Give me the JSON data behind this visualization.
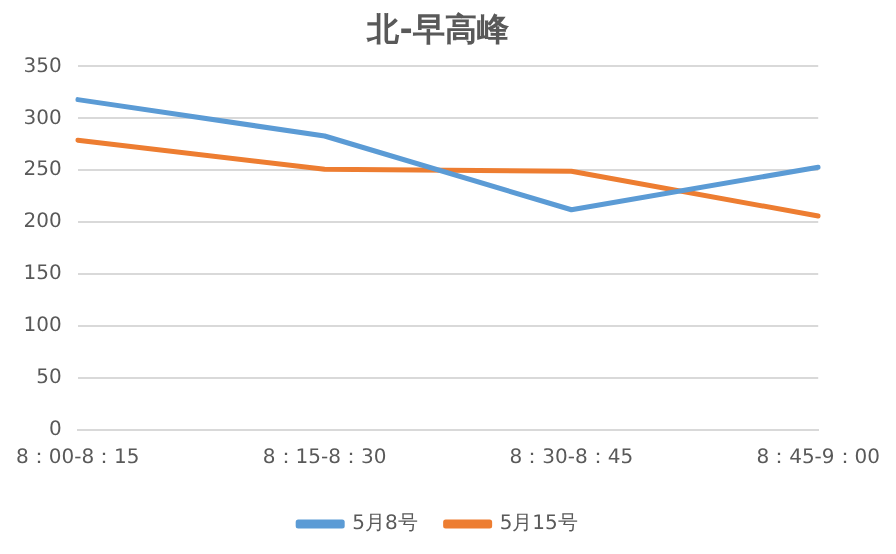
{
  "chart_data": {
    "type": "line",
    "title": "北-早高峰",
    "categories": [
      "8：00-8：15",
      "8：15-8：30",
      "8：30-8：45",
      "8：45-9：00"
    ],
    "series": [
      {
        "name": "5月8号",
        "color": "#5b9bd5",
        "values": [
          318,
          283,
          212,
          253
        ]
      },
      {
        "name": "5月15号",
        "color": "#ed7d31",
        "values": [
          279,
          251,
          249,
          206
        ]
      }
    ],
    "ylim": [
      0,
      350
    ],
    "yticks": [
      0,
      50,
      100,
      150,
      200,
      250,
      300,
      350
    ],
    "grid": "y",
    "legend": "bottom",
    "marker": "none",
    "line_style": "solid"
  }
}
